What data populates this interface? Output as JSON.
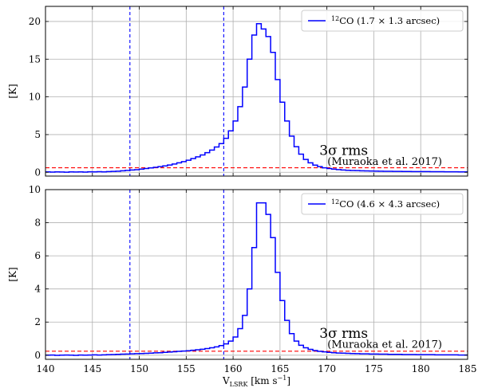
{
  "chart_data": [
    {
      "type": "line",
      "panel": "top",
      "xlabel": "",
      "ylabel": "[K]",
      "xlim": [
        140,
        185
      ],
      "ylim": [
        -0.5,
        22
      ],
      "xticks": [
        140,
        145,
        150,
        155,
        160,
        165,
        170,
        175,
        180,
        185
      ],
      "yticks": [
        0,
        5,
        10,
        15,
        20
      ],
      "show_xtick_labels": false,
      "grid": true,
      "legend": {
        "placement": "top-right",
        "entries": [
          "12CO (1.7 × 1.3 arcsec)"
        ]
      },
      "legend_parts": {
        "sup": "12",
        "text": "CO (1.7 × 1.3 arcsec)"
      },
      "series": [
        {
          "name": "12CO (1.7 × 1.3 arcsec)",
          "color": "#0000ff",
          "style": "steps",
          "step_width": 0.5,
          "x": [
            140,
            140.5,
            141,
            141.5,
            142,
            142.5,
            143,
            143.5,
            144,
            144.5,
            145,
            145.5,
            146,
            146.5,
            147,
            147.5,
            148,
            148.5,
            149,
            149.5,
            150,
            150.5,
            151,
            151.5,
            152,
            152.5,
            153,
            153.5,
            154,
            154.5,
            155,
            155.5,
            156,
            156.5,
            157,
            157.5,
            158,
            158.5,
            159,
            159.5,
            160,
            160.5,
            161,
            161.5,
            162,
            162.5,
            163,
            163.5,
            164,
            164.5,
            165,
            165.5,
            166,
            166.5,
            167,
            167.5,
            168,
            168.5,
            169,
            169.5,
            170,
            170.5,
            171,
            171.5,
            172,
            172.5,
            173,
            173.5,
            174,
            174.5,
            175,
            175.5,
            176,
            176.5,
            177,
            177.5,
            178,
            178.5,
            179,
            179.5,
            180,
            180.5,
            181,
            181.5,
            182,
            182.5,
            183,
            183.5,
            184,
            184.5
          ],
          "y": [
            0.05,
            0.03,
            0.06,
            0.04,
            0.02,
            0.05,
            0.04,
            0.06,
            0.03,
            0.07,
            0.05,
            0.08,
            0.06,
            0.1,
            0.12,
            0.15,
            0.2,
            0.25,
            0.3,
            0.35,
            0.42,
            0.5,
            0.58,
            0.66,
            0.75,
            0.85,
            0.97,
            1.1,
            1.25,
            1.42,
            1.6,
            1.82,
            2.05,
            2.3,
            2.6,
            2.95,
            3.35,
            3.8,
            4.5,
            5.5,
            6.8,
            8.7,
            11.3,
            15.0,
            18.2,
            19.7,
            19.0,
            18.0,
            15.9,
            12.3,
            9.3,
            6.8,
            4.8,
            3.4,
            2.4,
            1.7,
            1.25,
            0.95,
            0.75,
            0.6,
            0.5,
            0.42,
            0.36,
            0.3,
            0.27,
            0.24,
            0.22,
            0.2,
            0.18,
            0.17,
            0.16,
            0.15,
            0.14,
            0.13,
            0.12,
            0.12,
            0.11,
            0.11,
            0.1,
            0.1,
            0.09,
            0.09,
            0.08,
            0.08,
            0.08,
            0.07,
            0.07,
            0.07,
            0.06,
            0.06
          ]
        }
      ],
      "vlines": [
        {
          "x": 149,
          "color": "#0000ff",
          "style": "dashed"
        },
        {
          "x": 159,
          "color": "#0000ff",
          "style": "dashed"
        }
      ],
      "hlines": [
        {
          "y": 0.6,
          "color": "#ff0000",
          "style": "dashed"
        }
      ],
      "annotation": {
        "line1": "3σ rms",
        "line2": "(Muraoka et al. 2017)",
        "x": 169.2,
        "y_line1": 2.3,
        "y_line2": 1.0
      }
    },
    {
      "type": "line",
      "panel": "bottom",
      "xlabel": "V_LSRK [km s^-1]",
      "xlabel_parts": {
        "v": "V",
        "sub": "LSRK",
        "unit": " [km s",
        "sup": "−1",
        "close": "]"
      },
      "ylabel": "[K]",
      "xlim": [
        140,
        185
      ],
      "ylim": [
        -0.25,
        10
      ],
      "xticks": [
        140,
        145,
        150,
        155,
        160,
        165,
        170,
        175,
        180,
        185
      ],
      "yticks": [
        0,
        2,
        4,
        6,
        8,
        10
      ],
      "show_xtick_labels": true,
      "grid": true,
      "legend": {
        "placement": "top-right",
        "entries": [
          "12CO (4.6 × 4.3 arcsec)"
        ]
      },
      "legend_parts": {
        "sup": "12",
        "text": "CO (4.6 × 4.3 arcsec)"
      },
      "series": [
        {
          "name": "12CO (4.6 × 4.3 arcsec)",
          "color": "#0000ff",
          "style": "steps",
          "step_width": 0.5,
          "x": [
            140,
            140.5,
            141,
            141.5,
            142,
            142.5,
            143,
            143.5,
            144,
            144.5,
            145,
            145.5,
            146,
            146.5,
            147,
            147.5,
            148,
            148.5,
            149,
            149.5,
            150,
            150.5,
            151,
            151.5,
            152,
            152.5,
            153,
            153.5,
            154,
            154.5,
            155,
            155.5,
            156,
            156.5,
            157,
            157.5,
            158,
            158.5,
            159,
            159.5,
            160,
            160.5,
            161,
            161.5,
            162,
            162.5,
            163,
            163.5,
            164,
            164.5,
            165,
            165.5,
            166,
            166.5,
            167,
            167.5,
            168,
            168.5,
            169,
            169.5,
            170,
            170.5,
            171,
            171.5,
            172,
            172.5,
            173,
            173.5,
            174,
            174.5,
            175,
            175.5,
            176,
            176.5,
            177,
            177.5,
            178,
            178.5,
            179,
            179.5,
            180,
            180.5,
            181,
            181.5,
            182,
            182.5,
            183,
            183.5,
            184,
            184.5
          ],
          "y": [
            0.0,
            0.01,
            -0.01,
            0.0,
            0.01,
            0.0,
            -0.01,
            0.01,
            0.0,
            0.01,
            0.02,
            0.01,
            0.02,
            0.03,
            0.04,
            0.05,
            0.06,
            0.07,
            0.08,
            0.09,
            0.1,
            0.11,
            0.12,
            0.14,
            0.15,
            0.17,
            0.19,
            0.21,
            0.23,
            0.25,
            0.27,
            0.3,
            0.33,
            0.36,
            0.4,
            0.45,
            0.5,
            0.58,
            0.68,
            0.85,
            1.1,
            1.6,
            2.4,
            4.0,
            6.5,
            9.2,
            9.2,
            8.5,
            7.1,
            5.0,
            3.3,
            2.1,
            1.3,
            0.85,
            0.6,
            0.45,
            0.35,
            0.28,
            0.23,
            0.2,
            0.17,
            0.15,
            0.13,
            0.12,
            0.11,
            0.1,
            0.09,
            0.08,
            0.08,
            0.07,
            0.07,
            0.06,
            0.06,
            0.05,
            0.05,
            0.05,
            0.04,
            0.04,
            0.04,
            0.03,
            0.03,
            0.03,
            0.03,
            0.02,
            0.02,
            0.02,
            0.02,
            0.02,
            0.01,
            0.01
          ]
        }
      ],
      "vlines": [
        {
          "x": 149,
          "color": "#0000ff",
          "style": "dashed"
        },
        {
          "x": 159,
          "color": "#0000ff",
          "style": "dashed"
        }
      ],
      "hlines": [
        {
          "y": 0.24,
          "color": "#ff0000",
          "style": "dashed"
        }
      ],
      "annotation": {
        "line1": "3σ rms",
        "line2": "(Muraoka et al. 2017)",
        "x": 169.2,
        "y_line1": 1.05,
        "y_line2": 0.45
      }
    }
  ]
}
